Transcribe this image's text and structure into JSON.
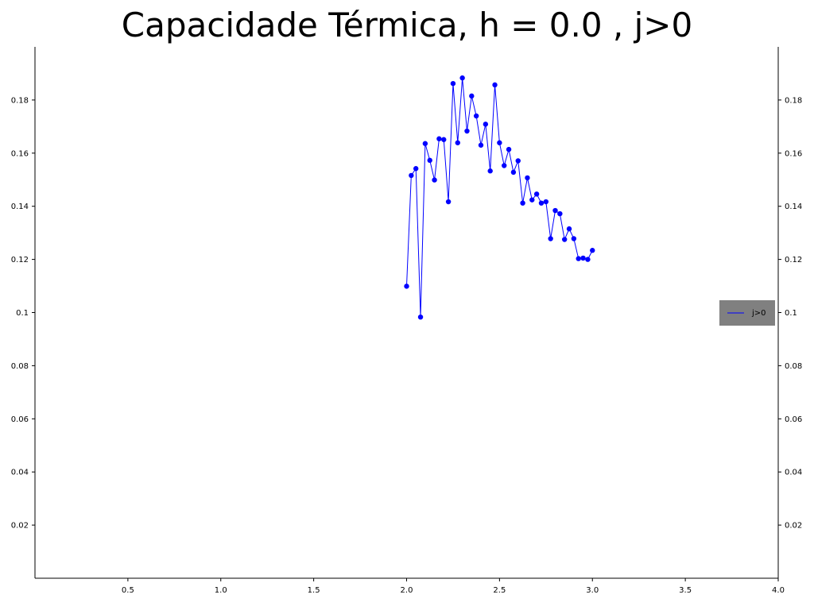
{
  "chart_data": {
    "type": "line",
    "title": "Capacidade Térmica, h = 0.0 , j>0",
    "xlabel": "",
    "ylabel": "",
    "xlim": [
      0,
      4.0
    ],
    "ylim": [
      0,
      0.2
    ],
    "xticks": [
      0.5,
      1.0,
      1.5,
      2.0,
      2.5,
      3.0,
      3.5,
      4.0
    ],
    "xtick_labels": [
      "0.5",
      "1.0",
      "1.5",
      "2.0",
      "2.5",
      "3.0",
      "3.5",
      "4.0"
    ],
    "yticks": [
      0.02,
      0.04,
      0.06,
      0.08,
      0.1,
      0.12,
      0.14,
      0.16,
      0.18
    ],
    "ytick_labels": [
      "0.02",
      "0.04",
      "0.06",
      "0.08",
      "0.1",
      "0.12",
      "0.14",
      "0.16",
      "0.18"
    ],
    "grid": false,
    "legend": "right",
    "series": [
      {
        "name": "j>0",
        "color": "#0000ff",
        "marker": "circle",
        "x": [
          2.0,
          2.025,
          2.05,
          2.075,
          2.1,
          2.125,
          2.15,
          2.175,
          2.2,
          2.225,
          2.25,
          2.275,
          2.3,
          2.325,
          2.35,
          2.375,
          2.4,
          2.425,
          2.45,
          2.475,
          2.5,
          2.525,
          2.55,
          2.575,
          2.6,
          2.625,
          2.65,
          2.675,
          2.7,
          2.725,
          2.75,
          2.775,
          2.8,
          2.825,
          2.85,
          2.875,
          2.9,
          2.925,
          2.95,
          2.975,
          3.0
        ],
        "y": [
          0.1099,
          0.1516,
          0.1542,
          0.0983,
          0.1636,
          0.1573,
          0.1499,
          0.1654,
          0.1651,
          0.1417,
          0.1862,
          0.1639,
          0.1883,
          0.1683,
          0.1815,
          0.174,
          0.163,
          0.1709,
          0.1533,
          0.1857,
          0.1639,
          0.1553,
          0.1614,
          0.1528,
          0.1571,
          0.1412,
          0.1507,
          0.1424,
          0.1446,
          0.1412,
          0.1417,
          0.1278,
          0.1384,
          0.1372,
          0.1275,
          0.1315,
          0.1278,
          0.1203,
          0.1205,
          0.12,
          0.1234
        ]
      }
    ]
  }
}
